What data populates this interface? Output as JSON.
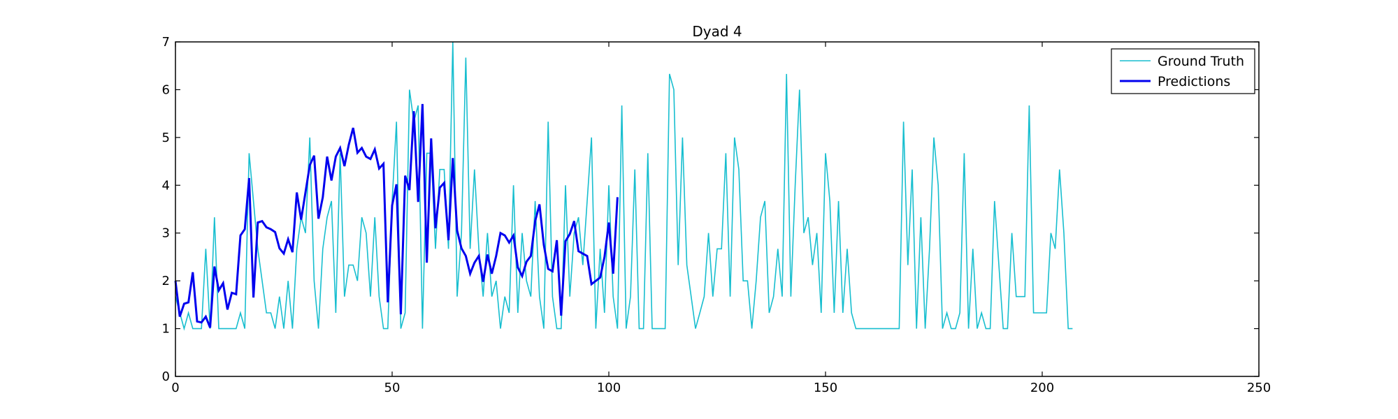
{
  "chart_data": {
    "type": "line",
    "title": "Dyad 4",
    "xlabel": "",
    "ylabel": "",
    "xlim": [
      0,
      250
    ],
    "ylim": [
      0,
      7
    ],
    "x_ticks": [
      0,
      50,
      100,
      150,
      200,
      250
    ],
    "y_ticks": [
      0,
      1,
      2,
      3,
      4,
      5,
      6,
      7
    ],
    "grid": false,
    "legend_position": "top-right",
    "series": [
      {
        "name": "Ground Truth",
        "color": "#17becf",
        "line_style": "thin",
        "x_start": 0,
        "values": [
          1.67,
          1.33,
          1,
          1.33,
          1,
          1,
          1,
          2.67,
          1,
          3.33,
          1,
          1,
          1,
          1,
          1,
          1.33,
          1,
          4.67,
          3.67,
          2.67,
          2,
          1.33,
          1.33,
          1,
          1.67,
          1,
          2,
          1,
          2.67,
          3.33,
          3,
          5,
          2,
          1,
          2.67,
          3.33,
          3.67,
          1.33,
          4.67,
          1.67,
          2.33,
          2.33,
          2,
          3.33,
          3,
          1.67,
          3.33,
          1.67,
          1,
          1,
          3.67,
          5.33,
          1,
          1.33,
          6,
          5.33,
          5.67,
          1,
          4.67,
          4.67,
          2.67,
          4.33,
          4.33,
          2.67,
          7,
          1.67,
          3,
          6.67,
          2.67,
          4.33,
          2.67,
          1.67,
          3,
          1.67,
          2,
          1,
          1.67,
          1.33,
          4,
          1.33,
          3,
          2,
          1.67,
          3.67,
          1.67,
          1,
          5.33,
          1.67,
          1,
          1,
          4,
          1.67,
          3,
          3.33,
          2.33,
          3.67,
          5,
          1,
          2.67,
          1.33,
          4,
          1.67,
          1,
          5.67,
          1,
          1.67,
          4.33,
          1,
          1,
          4.67,
          1,
          1,
          1,
          1,
          6.33,
          6,
          2.33,
          5,
          2.33,
          1.67,
          1,
          1.33,
          1.67,
          3,
          1.67,
          2.67,
          2.67,
          4.67,
          1.67,
          5,
          4.33,
          2,
          2,
          1,
          2,
          3.33,
          3.67,
          1.33,
          1.67,
          2.67,
          1.67,
          6.33,
          1.67,
          4,
          6,
          3,
          3.33,
          2.33,
          3,
          1.33,
          4.67,
          3.67,
          1.33,
          3.67,
          1.33,
          2.67,
          1.33,
          1,
          1,
          1,
          1,
          1,
          1,
          1,
          1,
          1,
          1,
          1,
          5.33,
          2.33,
          4.33,
          1,
          3.33,
          1,
          2.67,
          5,
          4,
          1,
          1.33,
          1,
          1,
          1.33,
          4.67,
          1,
          2.67,
          1,
          1.33,
          1,
          1,
          3.67,
          2.33,
          1,
          1,
          3,
          1.67,
          1.67,
          1.67,
          5.67,
          1.33,
          1.33,
          1.33,
          1.33,
          3,
          2.67,
          4.33,
          3,
          1,
          1
        ]
      },
      {
        "name": "Predictions",
        "color": "#0000ee",
        "line_style": "thick",
        "x_start": 0,
        "values": [
          2,
          1.25,
          1.52,
          1.55,
          2.18,
          1.15,
          1.13,
          1.25,
          1.02,
          2.3,
          1.8,
          1.95,
          1.4,
          1.75,
          1.72,
          2.95,
          3.08,
          4.15,
          1.65,
          3.22,
          3.25,
          3.12,
          3.08,
          3.02,
          2.68,
          2.57,
          2.87,
          2.6,
          3.85,
          3.28,
          3.85,
          4.42,
          4.62,
          3.3,
          3.75,
          4.6,
          4.1,
          4.6,
          4.78,
          4.4,
          4.85,
          5.2,
          4.68,
          4.78,
          4.6,
          4.55,
          4.75,
          4.35,
          4.45,
          1.55,
          3.58,
          4.02,
          1.3,
          4.2,
          3.9,
          5.55,
          3.65,
          5.7,
          2.38,
          4.98,
          3.1,
          3.95,
          4.05,
          2.85,
          4.57,
          3.05,
          2.68,
          2.52,
          2.15,
          2.38,
          2.52,
          1.98,
          2.55,
          2.15,
          2.52,
          3,
          2.95,
          2.8,
          2.95,
          2.28,
          2.1,
          2.4,
          2.52,
          3.25,
          3.6,
          2.75,
          2.25,
          2.2,
          2.85,
          1.27,
          2.83,
          2.98,
          3.25,
          2.62,
          2.57,
          2.52,
          1.93,
          2,
          2.07,
          2.5,
          3.22,
          2.15,
          3.75
        ]
      }
    ]
  }
}
